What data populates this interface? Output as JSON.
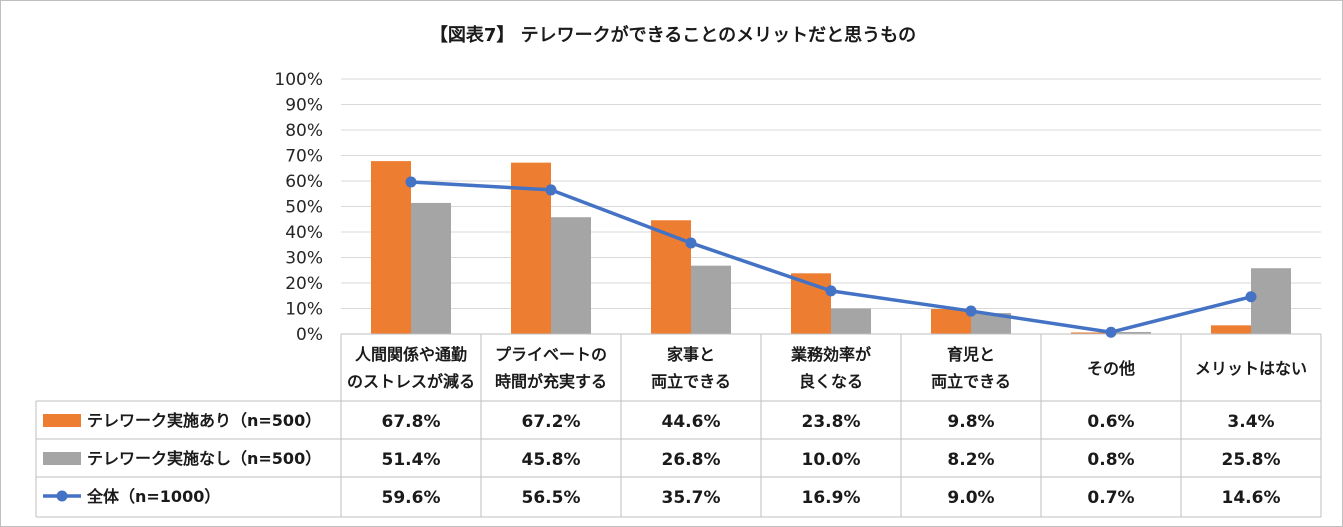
{
  "chart_data": {
    "type": "bar",
    "title": "【図表7】 テレワークができることのメリットだと思うもの",
    "categories": [
      [
        "人間関係や通勤",
        "のストレスが減る"
      ],
      [
        "プライベートの",
        "時間が充実する"
      ],
      [
        "家事と",
        "両立できる"
      ],
      [
        "業務効率が",
        "良くなる"
      ],
      [
        "育児と",
        "両立できる"
      ],
      [
        "その他"
      ],
      [
        "メリットはない"
      ]
    ],
    "yticks": [
      "0%",
      "10%",
      "20%",
      "30%",
      "40%",
      "50%",
      "60%",
      "70%",
      "80%",
      "90%",
      "100%"
    ],
    "ylim": [
      0,
      100
    ],
    "grid": true,
    "legend": "table-below",
    "series": [
      {
        "name": "テレワーク実施あり（n=500）",
        "kind": "bar",
        "color": "#ed7d31",
        "values": [
          67.8,
          67.2,
          44.6,
          23.8,
          9.8,
          0.6,
          3.4
        ],
        "labels": [
          "67.8%",
          "67.2%",
          "44.6%",
          "23.8%",
          "9.8%",
          "0.6%",
          "3.4%"
        ]
      },
      {
        "name": "テレワーク実施なし（n=500）",
        "kind": "bar",
        "color": "#a5a5a5",
        "values": [
          51.4,
          45.8,
          26.8,
          10.0,
          8.2,
          0.8,
          25.8
        ],
        "labels": [
          "51.4%",
          "45.8%",
          "26.8%",
          "10.0%",
          "8.2%",
          "0.8%",
          "25.8%"
        ]
      },
      {
        "name": "全体（n=1000）",
        "kind": "line",
        "color": "#4472c4",
        "values": [
          59.6,
          56.5,
          35.7,
          16.9,
          9.0,
          0.7,
          14.6
        ],
        "labels": [
          "59.6%",
          "56.5%",
          "35.7%",
          "16.9%",
          "9.0%",
          "0.7%",
          "14.6%"
        ]
      }
    ]
  }
}
